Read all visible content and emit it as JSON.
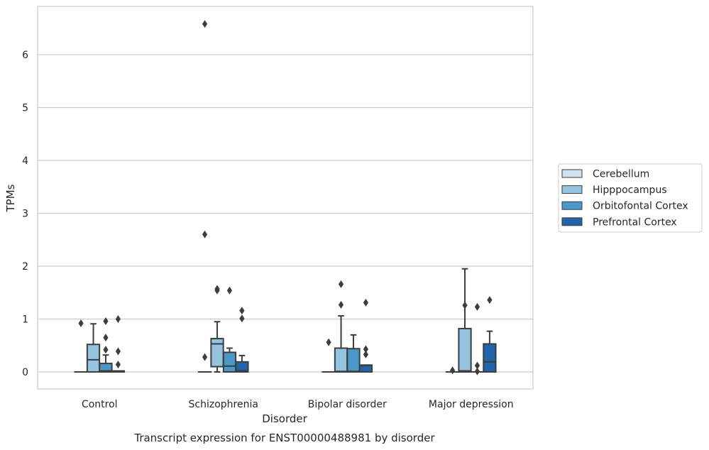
{
  "chart_data": {
    "type": "box",
    "title": "Transcript expression for ENST00000488981 by disorder",
    "xlabel": "Disorder",
    "ylabel": "TPMs",
    "ylim": [
      -0.32,
      6.9
    ],
    "yticks": [
      0,
      1,
      2,
      3,
      4,
      5,
      6
    ],
    "grid": "horizontal",
    "legend_position": "right",
    "categories": [
      "Control",
      "Schizophrenia",
      "Bipolar disorder",
      "Major depression"
    ],
    "series": [
      {
        "name": "Cerebellum",
        "color": "#d0e1f2",
        "boxes": [
          {
            "q1": 0,
            "median": 0,
            "q3": 0,
            "whisker_low": 0,
            "whisker_high": 0,
            "outliers": [
              0.92
            ]
          },
          {
            "q1": 0,
            "median": 0,
            "q3": 0,
            "whisker_low": 0,
            "whisker_high": 0,
            "outliers": [
              0.28,
              2.6,
              6.58
            ]
          },
          {
            "q1": 0,
            "median": 0,
            "q3": 0,
            "whisker_low": 0,
            "whisker_high": 0,
            "outliers": [
              0.56
            ]
          },
          {
            "q1": 0,
            "median": 0,
            "q3": 0,
            "whisker_low": 0,
            "whisker_high": 0,
            "outliers": [
              0.03
            ]
          }
        ]
      },
      {
        "name": "Hipppocampus",
        "color": "#94c4df",
        "boxes": [
          {
            "q1": 0,
            "median": 0.23,
            "q3": 0.52,
            "whisker_low": 0,
            "whisker_high": 0.91,
            "outliers": []
          },
          {
            "q1": 0.1,
            "median": 0.53,
            "q3": 0.63,
            "whisker_low": 0,
            "whisker_high": 0.95,
            "outliers": [
              1.54,
              1.57
            ]
          },
          {
            "q1": 0,
            "median": 0.01,
            "q3": 0.45,
            "whisker_low": 0,
            "whisker_high": 1.06,
            "outliers": [
              1.27,
              1.66
            ]
          },
          {
            "q1": 0,
            "median": 0.02,
            "q3": 0.82,
            "whisker_low": 0,
            "whisker_high": 1.95,
            "outliers": [
              1.26
            ]
          }
        ]
      },
      {
        "name": "Orbitofontal Cortex",
        "color": "#4a98c9",
        "boxes": [
          {
            "q1": 0,
            "median": 0.02,
            "q3": 0.16,
            "whisker_low": 0,
            "whisker_high": 0.32,
            "outliers": [
              0.42,
              0.65,
              0.96
            ]
          },
          {
            "q1": 0,
            "median": 0.11,
            "q3": 0.37,
            "whisker_low": 0,
            "whisker_high": 0.45,
            "outliers": [
              1.54
            ]
          },
          {
            "q1": 0,
            "median": 0.01,
            "q3": 0.44,
            "whisker_low": 0,
            "whisker_high": 0.7,
            "outliers": []
          },
          {
            "q1": 0,
            "median": 0,
            "q3": 0,
            "whisker_low": 0,
            "whisker_high": 0,
            "outliers": [
              0.01,
              0.12,
              1.23
            ]
          }
        ]
      },
      {
        "name": "Prefrontal Cortex",
        "color": "#2164ab",
        "boxes": [
          {
            "q1": 0,
            "median": 0,
            "q3": 0.02,
            "whisker_low": 0,
            "whisker_high": 0.02,
            "outliers": [
              0.14,
              0.39,
              1.0
            ]
          },
          {
            "q1": 0,
            "median": 0.02,
            "q3": 0.19,
            "whisker_low": 0,
            "whisker_high": 0.31,
            "outliers": [
              1.01,
              1.16
            ]
          },
          {
            "q1": 0,
            "median": 0.12,
            "q3": 0.13,
            "whisker_low": 0,
            "whisker_high": 0.13,
            "outliers": [
              0.33,
              0.43,
              1.31
            ]
          },
          {
            "q1": 0,
            "median": 0.19,
            "q3": 0.53,
            "whisker_low": 0,
            "whisker_high": 0.77,
            "outliers": [
              1.36
            ]
          }
        ]
      }
    ]
  }
}
